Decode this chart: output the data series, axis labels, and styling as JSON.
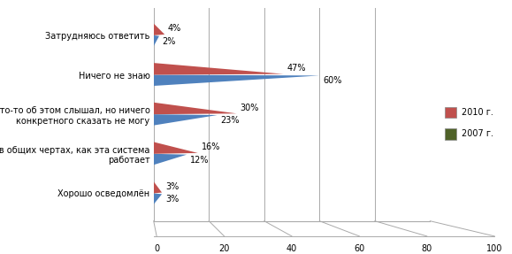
{
  "categories": [
    "Затрудняюсь ответить",
    "Ничего не знаю",
    "Что-то об этом слышал, но ничего\nконкретного сказать не могу",
    "Знаю в общих чертах, как эта система\nработает",
    "Хорошо осведомлён"
  ],
  "values_2010": [
    4,
    47,
    30,
    16,
    3
  ],
  "values_2007": [
    2,
    60,
    23,
    12,
    3
  ],
  "labels_2010": [
    "4%",
    "47%",
    "30%",
    "16%",
    "3%"
  ],
  "labels_2007": [
    "2%",
    "60%",
    "23%",
    "12%",
    "3%"
  ],
  "color_2010": "#C0504D",
  "color_2007": "#4F81BD",
  "legend_color_2010": "#C0504D",
  "legend_color_2007": "#4F6228",
  "background_color": "#FFFFFF",
  "legend_bg": "#FFFF99",
  "xlim": [
    0,
    100
  ],
  "legend_2010": "2010 г.",
  "legend_2007": "2007 г.",
  "xticks": [
    0,
    20,
    40,
    60,
    80,
    100
  ],
  "xtick_labels": [
    "0",
    "20",
    "40",
    "60",
    "80",
    "100"
  ]
}
